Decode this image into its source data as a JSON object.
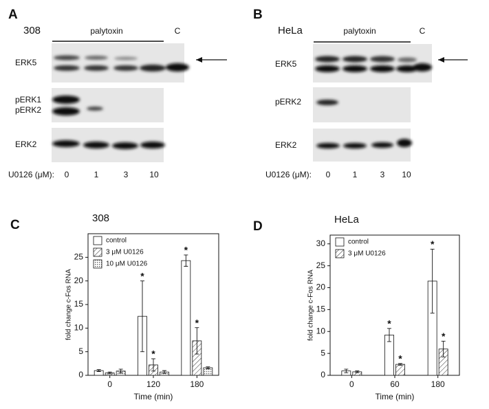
{
  "blots": [
    {
      "letter": "A",
      "cell_line": "308",
      "treatment": "palytoxin",
      "control_lane": "C",
      "rows": [
        "ERK5",
        "pERK1",
        "pERK2",
        "ERK2"
      ],
      "lanes_label": "U0126 (μM):",
      "lanes": [
        "0",
        "1",
        "3",
        "10"
      ]
    },
    {
      "letter": "B",
      "cell_line": "HeLa",
      "treatment": "palytoxin",
      "control_lane": "C",
      "rows": [
        "ERK5",
        "pERK2",
        "ERK2"
      ],
      "lanes_label": "U0126 (μM):",
      "lanes": [
        "0",
        "1",
        "3",
        "10"
      ]
    }
  ],
  "chart_data": [
    {
      "type": "bar",
      "letter": "C",
      "title": "308",
      "xlabel": "Time (min)",
      "ylabel": "fold change c-Fos RNA",
      "categories": [
        "0",
        "120",
        "180"
      ],
      "ylim": [
        0,
        30
      ],
      "yticks": [
        0,
        5,
        10,
        15,
        20,
        25
      ],
      "legend": "top-left",
      "series": [
        {
          "name": "control",
          "color": "#ffffff",
          "pattern": "none",
          "values": [
            1,
            12.5,
            24.3
          ],
          "errors": [
            0.2,
            7.5,
            1.2
          ],
          "significance": [
            null,
            "*",
            "*"
          ]
        },
        {
          "name": "3 μM U0126",
          "color": "#ffffff",
          "pattern": "hatch",
          "values": [
            0.5,
            2.2,
            7.3
          ],
          "errors": [
            0.2,
            1.3,
            2.8
          ],
          "significance": [
            null,
            "*",
            "*"
          ]
        },
        {
          "name": "10 μM U0126",
          "color": "#ffffff",
          "pattern": "dots",
          "values": [
            0.9,
            0.7,
            1.6
          ],
          "errors": [
            0.4,
            0.3,
            0.2
          ],
          "significance": [
            null,
            null,
            null
          ]
        }
      ]
    },
    {
      "type": "bar",
      "letter": "D",
      "title": "HeLa",
      "xlabel": "Time (min)",
      "ylabel": "fold change c-Fos RNA",
      "categories": [
        "0",
        "60",
        "180"
      ],
      "ylim": [
        0,
        32
      ],
      "yticks": [
        0,
        5,
        10,
        15,
        20,
        25,
        30
      ],
      "legend": "top-left",
      "series": [
        {
          "name": "control",
          "color": "#ffffff",
          "pattern": "none",
          "values": [
            1,
            9.2,
            21.5
          ],
          "errors": [
            0.4,
            1.5,
            7.3
          ],
          "significance": [
            null,
            "*",
            "*"
          ]
        },
        {
          "name": "3 μM U0126",
          "color": "#ffffff",
          "pattern": "hatch",
          "values": [
            0.8,
            2.5,
            6
          ],
          "errors": [
            0.2,
            0.2,
            1.8
          ],
          "significance": [
            null,
            "*",
            "*"
          ]
        }
      ]
    }
  ]
}
